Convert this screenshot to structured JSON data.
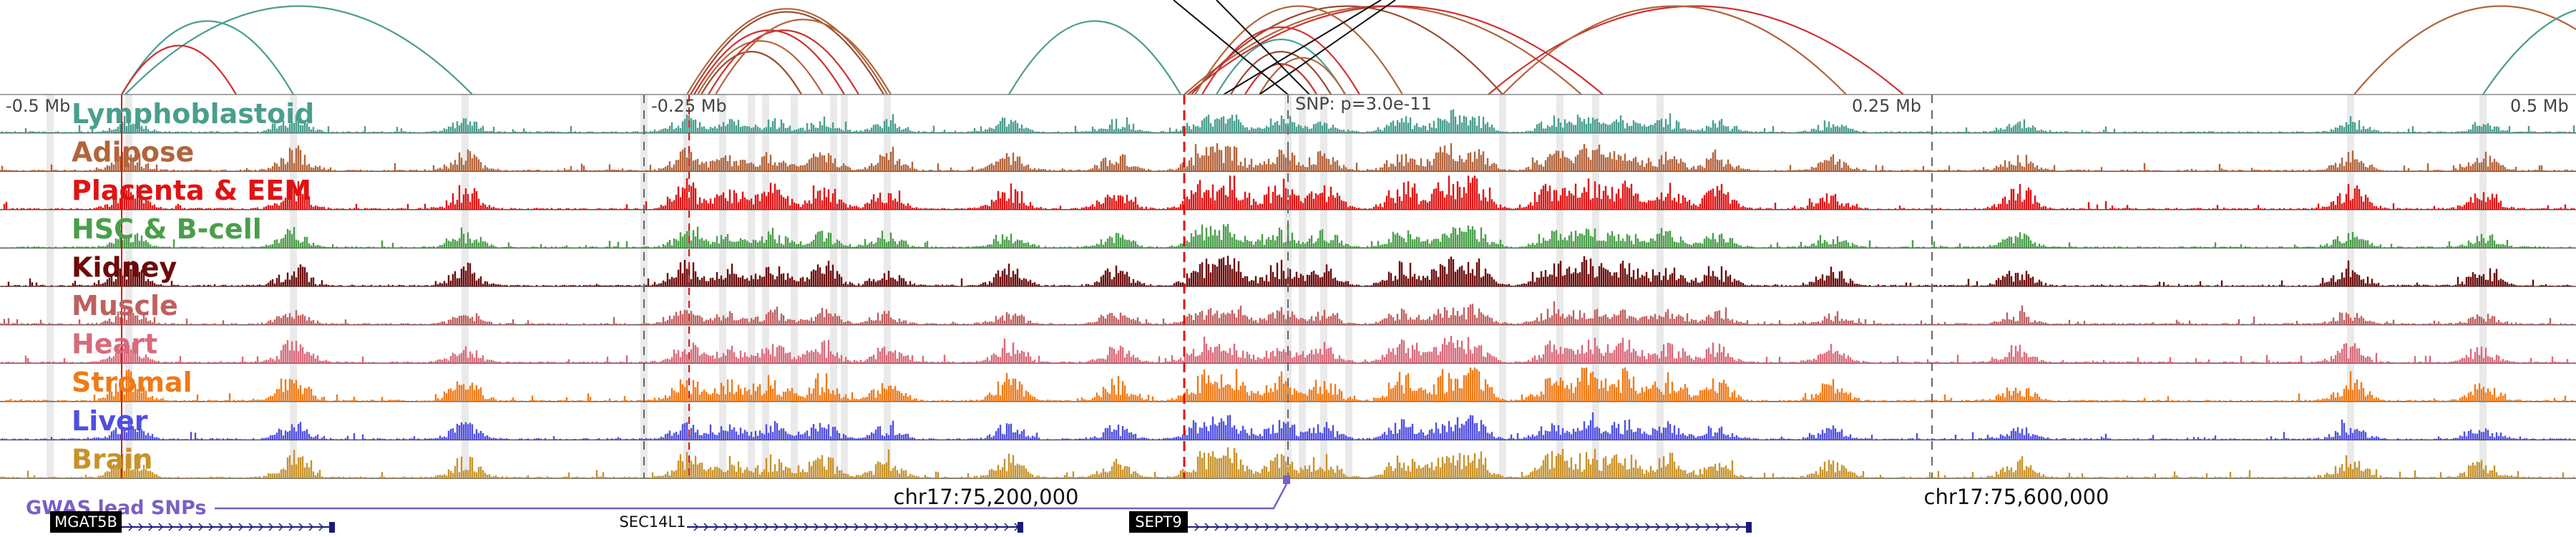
{
  "axis_labels": [
    "-0.5 Mb",
    "-0.25 Mb",
    "0.25 Mb",
    "0.5 Mb"
  ],
  "snp_label": "SNP: p=3.0e-11",
  "tracks": [
    {
      "name": "Lymphoblastoid",
      "color": "#4a9e8e"
    },
    {
      "name": "Adipose",
      "color": "#b2643c"
    },
    {
      "name": "Placenta & EEM",
      "color": "#e01313"
    },
    {
      "name": "HSC & B-cell",
      "color": "#4a9e4a"
    },
    {
      "name": "Kidney",
      "color": "#6b0a0a"
    },
    {
      "name": "Muscle",
      "color": "#c06060"
    },
    {
      "name": "Heart",
      "color": "#d86a7a"
    },
    {
      "name": "Stromal",
      "color": "#f07a18"
    },
    {
      "name": "Liver",
      "color": "#4f4fe0"
    },
    {
      "name": "Brain",
      "color": "#c8922a"
    }
  ],
  "gwas": {
    "label": "GWAS lead SNPs",
    "color": "#7a5fc4"
  },
  "coordinates": [
    "chr17:75,200,000",
    "chr17:75,600,000"
  ],
  "genes": [
    {
      "name": "MGAT5B",
      "highlighted": true
    },
    {
      "name": "SEC14L1",
      "highlighted": false
    },
    {
      "name": "SEPT9",
      "highlighted": true
    }
  ]
}
